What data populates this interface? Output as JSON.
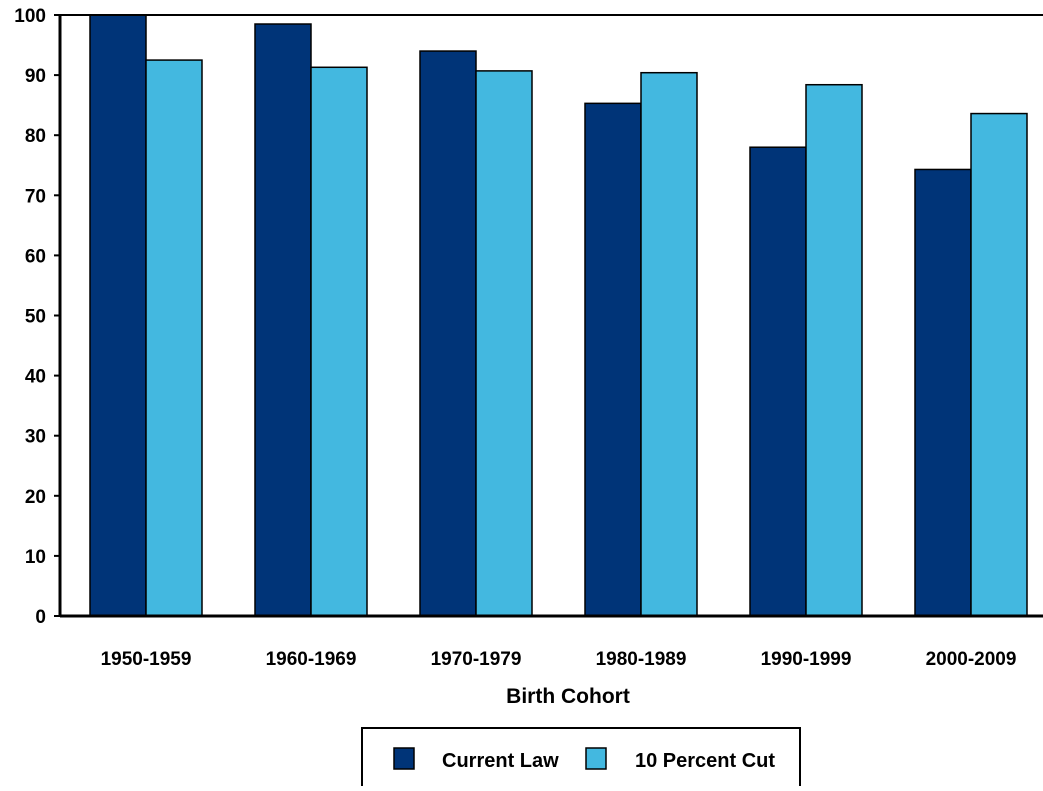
{
  "chart_data": {
    "type": "bar",
    "title": "",
    "xlabel": "Birth Cohort",
    "ylabel": "",
    "ylim": [
      0,
      100
    ],
    "yticks": [
      "0",
      "10",
      "20",
      "30",
      "40",
      "50",
      "60",
      "70",
      "80",
      "90",
      "100"
    ],
    "categories": [
      "1950-1959",
      "1960-1969",
      "1970-1979",
      "1980-1989",
      "1990-1999",
      "2000-2009"
    ],
    "series": [
      {
        "name": "Current Law",
        "color": "#003478",
        "values": [
          100,
          98.5,
          94,
          85.3,
          78,
          74.3
        ]
      },
      {
        "name": "10 Percent Cut",
        "color": "#43b8e0",
        "values": [
          92.5,
          91.3,
          90.7,
          90.4,
          88.4,
          83.6
        ]
      }
    ],
    "legend_position": "bottom-center",
    "grid": false
  }
}
